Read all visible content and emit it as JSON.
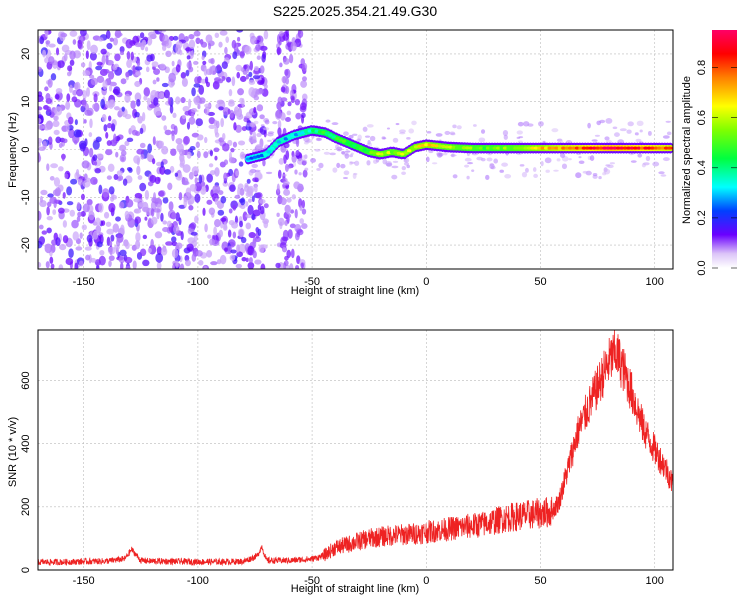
{
  "title": "S225.2025.354.21.49.G30",
  "chart_data": [
    {
      "type": "heatmap",
      "xlabel": "Height of straight line (km)",
      "ylabel": "Frequency (Hz)",
      "xlim": [
        -170,
        108
      ],
      "ylim": [
        -25,
        25
      ],
      "xticks": [
        -150,
        -100,
        -50,
        0,
        50,
        100
      ],
      "yticks": [
        -20,
        -10,
        0,
        10,
        20
      ],
      "grid": true,
      "colorbar": {
        "label": "Normalized spectral amplitude",
        "range": [
          0.0,
          0.95
        ],
        "ticks": [
          0.0,
          0.2,
          0.4,
          0.6,
          0.8
        ]
      },
      "ridge": [
        {
          "x": -78,
          "y": -2,
          "v": 0.25
        },
        {
          "x": -70,
          "y": -1,
          "v": 0.3
        },
        {
          "x": -65,
          "y": 1.5,
          "v": 0.35
        },
        {
          "x": -58,
          "y": 3,
          "v": 0.3
        },
        {
          "x": -50,
          "y": 4,
          "v": 0.4
        },
        {
          "x": -44,
          "y": 3.5,
          "v": 0.45
        },
        {
          "x": -40,
          "y": 2.5,
          "v": 0.45
        },
        {
          "x": -35,
          "y": 1.5,
          "v": 0.5
        },
        {
          "x": -30,
          "y": 0.5,
          "v": 0.5
        },
        {
          "x": -25,
          "y": -0.5,
          "v": 0.55
        },
        {
          "x": -20,
          "y": -1,
          "v": 0.6
        },
        {
          "x": -15,
          "y": -0.5,
          "v": 0.6
        },
        {
          "x": -10,
          "y": -1,
          "v": 0.6
        },
        {
          "x": -5,
          "y": 0.5,
          "v": 0.65
        },
        {
          "x": 0,
          "y": 1,
          "v": 0.7
        },
        {
          "x": 10,
          "y": 0.5,
          "v": 0.6
        },
        {
          "x": 20,
          "y": 0.3,
          "v": 0.55
        },
        {
          "x": 30,
          "y": 0.3,
          "v": 0.55
        },
        {
          "x": 40,
          "y": 0.3,
          "v": 0.6
        },
        {
          "x": 50,
          "y": 0.3,
          "v": 0.7
        },
        {
          "x": 60,
          "y": 0.3,
          "v": 0.8
        },
        {
          "x": 70,
          "y": 0.3,
          "v": 0.85
        },
        {
          "x": 80,
          "y": 0.3,
          "v": 0.95
        },
        {
          "x": 90,
          "y": 0.3,
          "v": 0.9
        },
        {
          "x": 100,
          "y": 0.3,
          "v": 0.85
        },
        {
          "x": 108,
          "y": 0.3,
          "v": 0.8
        }
      ]
    },
    {
      "type": "line",
      "xlabel": "Height of straight line (km)",
      "ylabel": "SNR (10 * v/v)",
      "xlim": [
        -170,
        108
      ],
      "ylim": [
        0,
        760
      ],
      "xticks": [
        -150,
        -100,
        -50,
        0,
        50,
        100
      ],
      "yticks": [
        0,
        200,
        400,
        600
      ],
      "grid": true,
      "color": "#ee2222",
      "x": [
        -170,
        -160,
        -150,
        -140,
        -132,
        -129,
        -125,
        -120,
        -110,
        -100,
        -90,
        -80,
        -74,
        -72,
        -70,
        -60,
        -50,
        -45,
        -40,
        -35,
        -30,
        -25,
        -20,
        -15,
        -10,
        -5,
        0,
        5,
        10,
        15,
        20,
        25,
        30,
        35,
        40,
        45,
        50,
        55,
        58,
        62,
        66,
        70,
        75,
        80,
        83,
        86,
        90,
        95,
        100,
        105,
        108
      ],
      "y": [
        25,
        25,
        27,
        28,
        35,
        65,
        30,
        28,
        27,
        26,
        26,
        27,
        45,
        75,
        30,
        30,
        35,
        45,
        70,
        80,
        90,
        100,
        105,
        110,
        112,
        115,
        120,
        125,
        130,
        135,
        140,
        145,
        155,
        165,
        170,
        175,
        180,
        185,
        215,
        320,
        430,
        500,
        580,
        660,
        690,
        640,
        560,
        450,
        380,
        320,
        270
      ]
    }
  ]
}
